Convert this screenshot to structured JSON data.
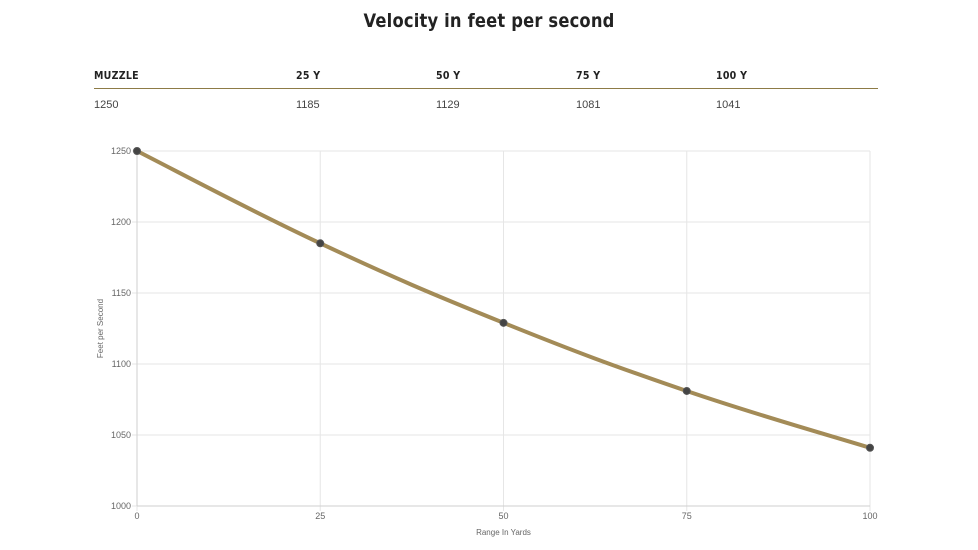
{
  "title": "Velocity in feet per second",
  "table": {
    "headers": [
      "MUZZLE",
      "25 Y",
      "50 Y",
      "75 Y",
      "100 Y"
    ],
    "values": [
      "1250",
      "1185",
      "1129",
      "1081",
      "1041"
    ]
  },
  "colors": {
    "line": "#a38b57",
    "point": "#444444",
    "grid": "#e6e6e6",
    "rule": "#8d7b46"
  },
  "chart_data": {
    "type": "line",
    "x": [
      0,
      25,
      50,
      75,
      100
    ],
    "series": [
      {
        "name": "Velocity",
        "values": [
          1250,
          1185,
          1129,
          1081,
          1041
        ]
      }
    ],
    "xlabel": "Range In Yards",
    "ylabel": "Feet per Second",
    "xlim": [
      0,
      100
    ],
    "ylim": [
      1000,
      1250
    ],
    "xticks": [
      0,
      25,
      50,
      75,
      100
    ],
    "yticks": [
      1000,
      1050,
      1100,
      1150,
      1200,
      1250
    ],
    "grid": true,
    "legend": "none"
  }
}
